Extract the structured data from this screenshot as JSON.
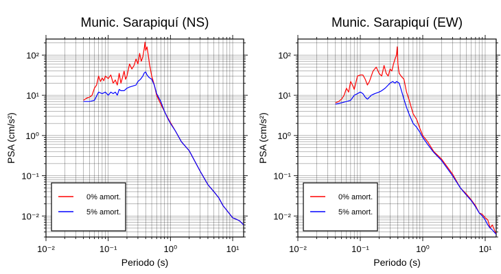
{
  "chart_data": [
    {
      "type": "line",
      "title": "Munic. Sarapiquí (NS)",
      "xlabel": "Periodo (s)",
      "ylabel": "PSA (cm/s²)",
      "xscale": "log",
      "yscale": "log",
      "xlim": [
        0.01,
        15
      ],
      "ylim": [
        0.003,
        250
      ],
      "x_ticks": [
        0.01,
        0.1,
        1,
        10
      ],
      "x_tick_labels": [
        "10⁻²",
        "10⁻¹",
        "10⁰",
        "10¹"
      ],
      "y_ticks": [
        0.01,
        0.1,
        1,
        10,
        100
      ],
      "y_tick_labels": [
        "10⁻²",
        "10⁻¹",
        "10⁰",
        "10¹",
        "10²"
      ],
      "grid": true,
      "legend_position": "bottom-left",
      "series": [
        {
          "name": "0% amort.",
          "color": "#ff0000",
          "x": [
            0.04,
            0.045,
            0.05,
            0.055,
            0.06,
            0.065,
            0.07,
            0.075,
            0.08,
            0.085,
            0.09,
            0.1,
            0.11,
            0.12,
            0.13,
            0.14,
            0.15,
            0.16,
            0.17,
            0.18,
            0.19,
            0.2,
            0.22,
            0.24,
            0.26,
            0.28,
            0.3,
            0.32,
            0.34,
            0.36,
            0.38,
            0.39,
            0.4,
            0.42,
            0.44,
            0.46,
            0.5,
            0.55,
            0.6,
            0.7,
            0.8,
            0.9,
            1.0,
            1.2,
            1.5,
            2.0,
            3.0,
            4.0,
            5.0,
            6.0,
            7.0,
            8.0,
            10.0,
            12.0,
            13.0,
            15.0
          ],
          "y": [
            7.5,
            8.5,
            9,
            10,
            15,
            18,
            30,
            22,
            27,
            23,
            30,
            26,
            32,
            20,
            24,
            18,
            35,
            20,
            28,
            40,
            25,
            30,
            60,
            45,
            55,
            80,
            60,
            110,
            70,
            90,
            150,
            210,
            130,
            160,
            100,
            60,
            30,
            18,
            10,
            6,
            4,
            2.8,
            2.1,
            1.3,
            0.7,
            0.42,
            0.13,
            0.06,
            0.04,
            0.028,
            0.018,
            0.014,
            0.009,
            0.008,
            0.0075,
            0.006
          ]
        },
        {
          "name": "5% amort.",
          "color": "#0000ff",
          "x": [
            0.04,
            0.05,
            0.06,
            0.07,
            0.08,
            0.09,
            0.1,
            0.11,
            0.12,
            0.13,
            0.14,
            0.15,
            0.16,
            0.18,
            0.2,
            0.22,
            0.25,
            0.28,
            0.3,
            0.33,
            0.36,
            0.38,
            0.4,
            0.42,
            0.45,
            0.5,
            0.55,
            0.6,
            0.7,
            0.8,
            0.9,
            1.0,
            1.2,
            1.5,
            2.0,
            3.0,
            4.0,
            5.0,
            6.0,
            7.0,
            8.0,
            10.0,
            12.0,
            13.0,
            15.0
          ],
          "y": [
            7,
            7,
            7.5,
            12,
            11,
            12,
            10,
            12,
            11,
            12,
            10,
            14,
            13,
            13,
            15,
            16,
            17,
            18,
            22,
            25,
            30,
            36,
            38,
            32,
            28,
            25,
            18,
            11,
            7,
            4,
            2.7,
            2.0,
            1.3,
            0.7,
            0.42,
            0.13,
            0.06,
            0.04,
            0.028,
            0.018,
            0.014,
            0.009,
            0.008,
            0.0075,
            0.006
          ]
        }
      ]
    },
    {
      "type": "line",
      "title": "Munic. Sarapiquí (EW)",
      "xlabel": "Periodo (s)",
      "ylabel": "PSA (cm/s²)",
      "xscale": "log",
      "yscale": "log",
      "xlim": [
        0.01,
        15
      ],
      "ylim": [
        0.003,
        250
      ],
      "x_ticks": [
        0.01,
        0.1,
        1,
        10
      ],
      "x_tick_labels": [
        "10⁻²",
        "10⁻¹",
        "10⁰",
        "10¹"
      ],
      "y_ticks": [
        0.01,
        0.1,
        1,
        10,
        100
      ],
      "y_tick_labels": [
        "10⁻²",
        "10⁻¹",
        "10⁰",
        "10¹",
        "10²"
      ],
      "grid": true,
      "legend_position": "bottom-left",
      "series": [
        {
          "name": "0% amort.",
          "color": "#ff0000",
          "x": [
            0.04,
            0.045,
            0.05,
            0.055,
            0.06,
            0.065,
            0.07,
            0.075,
            0.08,
            0.09,
            0.1,
            0.11,
            0.12,
            0.13,
            0.14,
            0.15,
            0.16,
            0.18,
            0.2,
            0.22,
            0.24,
            0.26,
            0.28,
            0.3,
            0.32,
            0.34,
            0.36,
            0.38,
            0.39,
            0.4,
            0.42,
            0.45,
            0.5,
            0.55,
            0.6,
            0.7,
            0.8,
            0.9,
            1.0,
            1.2,
            1.5,
            2.0,
            3.0,
            4.0,
            5.0,
            6.0,
            7.0,
            8.0,
            9.0,
            10.0,
            11.0,
            12.0,
            13.0,
            15.0
          ],
          "y": [
            6.5,
            7,
            8,
            10,
            15,
            12,
            22,
            18,
            14,
            30,
            32,
            32,
            25,
            18,
            22,
            30,
            40,
            50,
            35,
            30,
            55,
            35,
            30,
            45,
            40,
            60,
            80,
            100,
            160,
            60,
            35,
            30,
            25,
            12,
            8,
            3.5,
            2.5,
            1.5,
            1.0,
            0.7,
            0.4,
            0.26,
            0.11,
            0.05,
            0.035,
            0.025,
            0.018,
            0.012,
            0.011,
            0.009,
            0.008,
            0.005,
            0.006,
            0.0035
          ]
        },
        {
          "name": "5% amort.",
          "color": "#0000ff",
          "x": [
            0.04,
            0.05,
            0.06,
            0.07,
            0.08,
            0.09,
            0.1,
            0.11,
            0.12,
            0.13,
            0.15,
            0.17,
            0.2,
            0.22,
            0.25,
            0.28,
            0.3,
            0.33,
            0.36,
            0.38,
            0.4,
            0.42,
            0.45,
            0.5,
            0.55,
            0.6,
            0.7,
            0.8,
            0.9,
            1.0,
            1.2,
            1.5,
            2.0,
            3.0,
            4.0,
            5.0,
            6.0,
            7.0,
            8.0,
            9.0,
            10.0,
            11.0,
            12.0,
            13.0,
            15.0
          ],
          "y": [
            6,
            6.5,
            7,
            7.5,
            10,
            11,
            12,
            11,
            9,
            8,
            10,
            11,
            12,
            13,
            15,
            18,
            20,
            22,
            20,
            22,
            21,
            20,
            14,
            8,
            5,
            3.5,
            2.0,
            1.6,
            1.2,
            0.9,
            0.6,
            0.38,
            0.24,
            0.1,
            0.05,
            0.033,
            0.024,
            0.017,
            0.012,
            0.01,
            0.008,
            0.006,
            0.005,
            0.0045,
            0.0035
          ]
        }
      ]
    }
  ]
}
